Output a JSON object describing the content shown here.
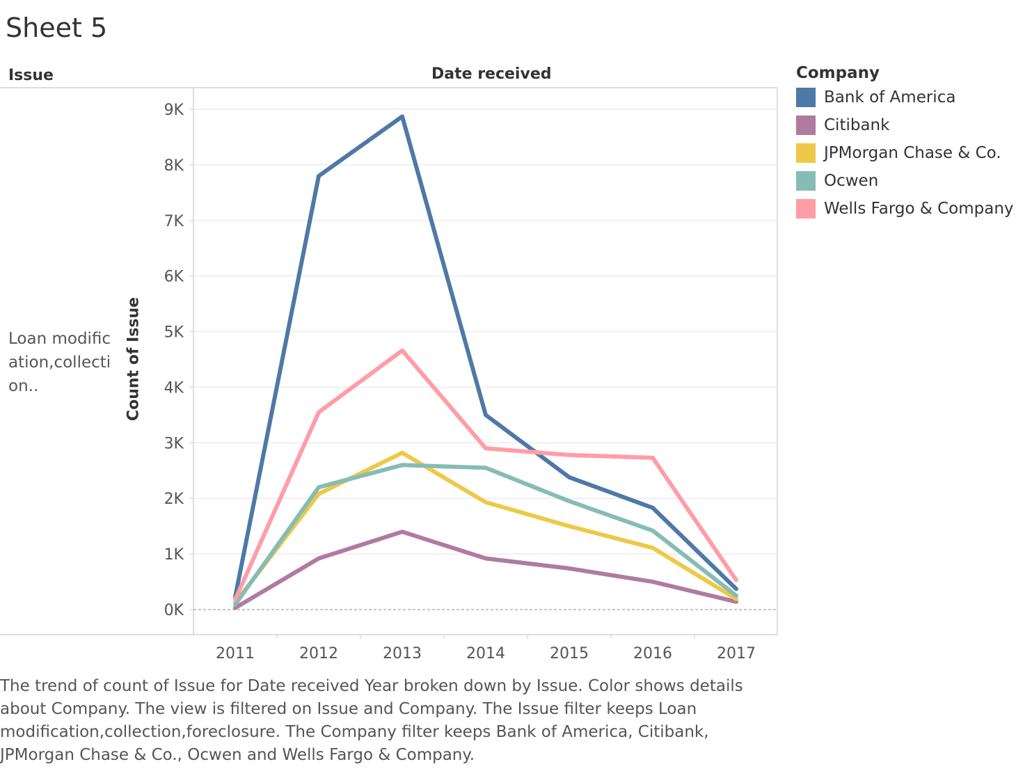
{
  "sheet": {
    "title": "Sheet 5"
  },
  "headers": {
    "row_header": "Issue",
    "column_header": "Date received"
  },
  "row_label": "Loan modific ation,collecti on..",
  "legend": {
    "title": "Company"
  },
  "caption": "The trend of count of Issue for Date received Year broken down by Issue.  Color shows details about Company. The view is filtered on Issue and Company. The Issue filter keeps Loan modification,collection,foreclosure. The Company filter keeps Bank of America, Citibank, JPMorgan Chase & Co., Ocwen and Wells Fargo & Company.",
  "chart_data": {
    "type": "line",
    "xlabel": "Date received",
    "ylabel": "Count of Issue",
    "x": [
      "2011",
      "2012",
      "2013",
      "2014",
      "2015",
      "2016",
      "2017"
    ],
    "ylim": [
      0,
      9000
    ],
    "y_ticks": [
      0,
      1000,
      2000,
      3000,
      4000,
      5000,
      6000,
      7000,
      8000,
      9000
    ],
    "y_tick_labels": [
      "0K",
      "1K",
      "2K",
      "3K",
      "4K",
      "5K",
      "6K",
      "7K",
      "8K",
      "9K"
    ],
    "grid": true,
    "legend_position": "right",
    "series": [
      {
        "name": "Bank of America",
        "color": "#4e79a7",
        "values": [
          230,
          7800,
          8870,
          3500,
          2380,
          1830,
          370
        ]
      },
      {
        "name": "Citibank",
        "color": "#b07aa1",
        "values": [
          30,
          920,
          1400,
          920,
          740,
          500,
          140
        ]
      },
      {
        "name": "JPMorgan Chase & Co.",
        "color": "#edc948",
        "values": [
          120,
          2080,
          2820,
          1930,
          1500,
          1110,
          190
        ]
      },
      {
        "name": "Ocwen",
        "color": "#86bcb6",
        "values": [
          90,
          2200,
          2600,
          2550,
          1950,
          1420,
          250
        ]
      },
      {
        "name": "Wells Fargo & Company",
        "color": "#ff9da7",
        "values": [
          180,
          3550,
          4660,
          2900,
          2780,
          2730,
          530
        ]
      }
    ]
  }
}
